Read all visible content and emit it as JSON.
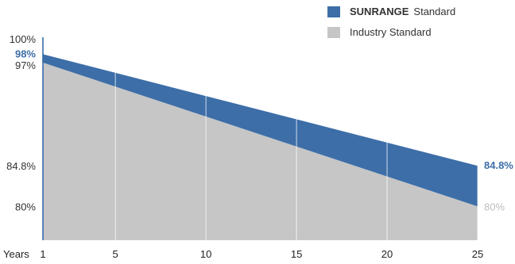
{
  "chart_data": {
    "type": "area",
    "x": [
      1,
      5,
      10,
      15,
      20,
      25
    ],
    "xlabel": "Years",
    "xlim": [
      1,
      25
    ],
    "ylim": [
      76,
      100
    ],
    "y_ticks": [
      "100%",
      "97%",
      "84.8%",
      "80%"
    ],
    "y_tick_values": [
      100,
      97,
      84.8,
      80
    ],
    "grid": true,
    "legend_position": "top-right",
    "series": [
      {
        "name_brand": "SUNRANGE",
        "name_rest": "Standard",
        "color": "#3d6ea8",
        "points": [
          [
            1,
            98
          ],
          [
            25,
            84.8
          ]
        ],
        "start_label": "98%",
        "end_label": "84.8%"
      },
      {
        "name": "Industry Standard",
        "color": "#c6c6c6",
        "points": [
          [
            1,
            97
          ],
          [
            25,
            80
          ]
        ],
        "end_label": "80%"
      }
    ]
  }
}
